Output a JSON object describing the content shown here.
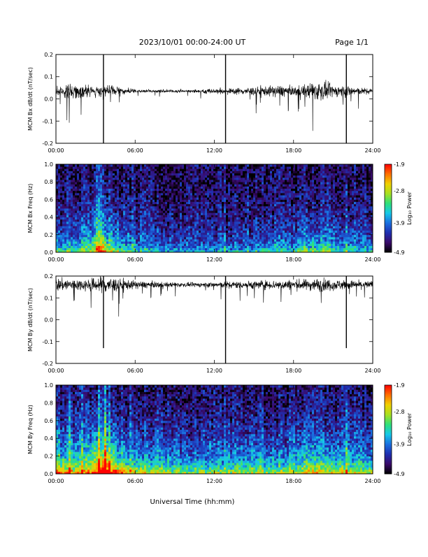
{
  "header": {
    "date_range": "2023/10/01  00:00-24:00 UT",
    "page": "Page 1/1"
  },
  "x_axis_title": "Universal Time (hh:mm)",
  "colors": {
    "trace": "#000000",
    "colormap": [
      "#000000",
      "#3a0a6a",
      "#1f2fb0",
      "#1a6fe0",
      "#16c8e8",
      "#2fe07a",
      "#a8e020",
      "#f0d000",
      "#ff7000",
      "#ff0000"
    ]
  },
  "chart_data": [
    {
      "type": "line",
      "ylabel": "MCM Bx dB/dt (nT/sec)",
      "ylim": [
        -0.2,
        0.2
      ],
      "yticks": [
        -0.2,
        -0.1,
        0.0,
        0.1,
        0.2
      ],
      "ytick_labels": [
        "-0.2",
        "-0.1",
        "0.0",
        "0.1",
        "0.2"
      ],
      "xlim": [
        0,
        24
      ],
      "xticks": [
        0,
        6,
        12,
        18,
        24
      ],
      "xtick_labels": [
        "00:00",
        "06:00",
        "12:00",
        "18:00",
        "24:00"
      ],
      "baseline": 0.035,
      "envelope": [
        [
          0,
          0.04
        ],
        [
          1,
          0.05
        ],
        [
          2,
          0.045
        ],
        [
          3,
          0.03
        ],
        [
          3.5,
          0.05
        ],
        [
          4.5,
          0.035
        ],
        [
          5.5,
          0.02
        ],
        [
          7,
          0.01
        ],
        [
          8,
          0.012
        ],
        [
          10,
          0.01
        ],
        [
          11,
          0.015
        ],
        [
          12,
          0.02
        ],
        [
          13,
          0.02
        ],
        [
          15,
          0.03
        ],
        [
          16,
          0.035
        ],
        [
          17,
          0.045
        ],
        [
          18,
          0.03
        ],
        [
          19,
          0.05
        ],
        [
          20,
          0.07
        ],
        [
          20.5,
          0.06
        ],
        [
          21,
          0.04
        ],
        [
          22,
          0.045
        ],
        [
          23,
          0.025
        ],
        [
          24,
          0.02
        ]
      ],
      "spikes": [
        {
          "t": 3.6,
          "low": -0.2,
          "high": 0.2
        },
        {
          "t": 12.85,
          "low": -0.2,
          "high": 0.2
        },
        {
          "t": 22.0,
          "low": -0.2,
          "high": 0.2
        }
      ]
    },
    {
      "type": "heatmap",
      "ylabel": "MCM Bx Freq (Hz)",
      "ylim": [
        0.0,
        1.0
      ],
      "yticks": [
        0.0,
        0.2,
        0.4,
        0.6,
        0.8,
        1.0
      ],
      "ytick_labels": [
        "0.0",
        "0.2",
        "0.4",
        "0.6",
        "0.8",
        "1.0"
      ],
      "xlim": [
        0,
        24
      ],
      "xticks": [
        0,
        6,
        12,
        18,
        24
      ],
      "xtick_labels": [
        "00:00",
        "06:00",
        "12:00",
        "18:00",
        "24:00"
      ],
      "colorbar": {
        "label": "Log₁₀ Power",
        "range": [
          -4.9,
          -1.9
        ],
        "ticks": [
          -1.9,
          -2.8,
          -3.9,
          -4.9
        ],
        "tick_labels": [
          "-1.9",
          "-2.8",
          "-3.9",
          "-4.9"
        ]
      },
      "activity": [
        [
          0,
          0.35
        ],
        [
          1,
          0.35
        ],
        [
          2,
          0.4
        ],
        [
          3,
          0.55
        ],
        [
          3.5,
          0.6
        ],
        [
          4,
          0.5
        ],
        [
          5,
          0.35
        ],
        [
          7,
          0.25
        ],
        [
          9,
          0.22
        ],
        [
          12,
          0.2
        ],
        [
          14,
          0.24
        ],
        [
          16,
          0.28
        ],
        [
          18,
          0.3
        ],
        [
          19,
          0.38
        ],
        [
          20,
          0.4
        ],
        [
          21,
          0.36
        ],
        [
          22,
          0.3
        ],
        [
          24,
          0.28
        ]
      ],
      "stripes": [
        [
          3.15,
          0.45
        ],
        [
          3.3,
          0.5
        ],
        [
          3.45,
          0.45
        ],
        [
          3.65,
          0.35
        ],
        [
          5.8,
          0.2
        ],
        [
          9.2,
          0.15
        ],
        [
          12.85,
          0.25
        ],
        [
          22.0,
          0.2
        ]
      ]
    },
    {
      "type": "line",
      "ylabel": "MCM By dB/dt (nT/sec)",
      "ylim": [
        -0.2,
        0.2
      ],
      "yticks": [
        -0.2,
        -0.1,
        0.0,
        0.1,
        0.2
      ],
      "ytick_labels": [
        "-0.2",
        "-0.1",
        "0.0",
        "0.1",
        "0.2"
      ],
      "xlim": [
        0,
        24
      ],
      "xticks": [
        0,
        6,
        12,
        18,
        24
      ],
      "xtick_labels": [
        "00:00",
        "06:00",
        "12:00",
        "18:00",
        "24:00"
      ],
      "baseline": 0.16,
      "envelope": [
        [
          0,
          0.05
        ],
        [
          1,
          0.045
        ],
        [
          2,
          0.04
        ],
        [
          3,
          0.05
        ],
        [
          3.5,
          0.07
        ],
        [
          4,
          0.06
        ],
        [
          5,
          0.04
        ],
        [
          6,
          0.03
        ],
        [
          8,
          0.02
        ],
        [
          10,
          0.015
        ],
        [
          12,
          0.02
        ],
        [
          13,
          0.025
        ],
        [
          15,
          0.03
        ],
        [
          17,
          0.035
        ],
        [
          19,
          0.04
        ],
        [
          20,
          0.05
        ],
        [
          21,
          0.04
        ],
        [
          22,
          0.035
        ],
        [
          23,
          0.03
        ],
        [
          24,
          0.03
        ]
      ],
      "spikes": [
        {
          "t": 3.6,
          "low": -0.13,
          "high": 0.2
        },
        {
          "t": 12.85,
          "low": -0.2,
          "high": 0.2
        },
        {
          "t": 22.0,
          "low": -0.13,
          "high": 0.2
        }
      ]
    },
    {
      "type": "heatmap",
      "ylabel": "MCM By Freq (Hz)",
      "ylim": [
        0.0,
        1.0
      ],
      "yticks": [
        0.0,
        0.2,
        0.4,
        0.6,
        0.8,
        1.0
      ],
      "ytick_labels": [
        "0.0",
        "0.2",
        "0.4",
        "0.6",
        "0.8",
        "1.0"
      ],
      "xlim": [
        0,
        24
      ],
      "xticks": [
        0,
        6,
        12,
        18,
        24
      ],
      "xtick_labels": [
        "00:00",
        "06:00",
        "12:00",
        "18:00",
        "24:00"
      ],
      "colorbar": {
        "label": "Log₁₀ Power",
        "range": [
          -4.9,
          -1.9
        ],
        "ticks": [
          -1.9,
          -2.8,
          -3.9,
          -4.9
        ],
        "tick_labels": [
          "-1.9",
          "-2.8",
          "-3.9",
          "-4.9"
        ]
      },
      "activity": [
        [
          0,
          0.6
        ],
        [
          1,
          0.55
        ],
        [
          2,
          0.55
        ],
        [
          3,
          0.75
        ],
        [
          3.5,
          0.85
        ],
        [
          4,
          0.8
        ],
        [
          4.5,
          0.7
        ],
        [
          5,
          0.6
        ],
        [
          6,
          0.5
        ],
        [
          8,
          0.45
        ],
        [
          10,
          0.42
        ],
        [
          12,
          0.4
        ],
        [
          14,
          0.42
        ],
        [
          16,
          0.45
        ],
        [
          18,
          0.45
        ],
        [
          19,
          0.52
        ],
        [
          20,
          0.55
        ],
        [
          21,
          0.5
        ],
        [
          22,
          0.5
        ],
        [
          24,
          0.45
        ]
      ],
      "stripes": [
        [
          0.3,
          0.4
        ],
        [
          1.0,
          0.35
        ],
        [
          2.0,
          0.3
        ],
        [
          3.3,
          0.6
        ],
        [
          3.5,
          0.65
        ],
        [
          3.7,
          0.7
        ],
        [
          4.0,
          0.6
        ],
        [
          4.3,
          0.55
        ],
        [
          4.6,
          0.5
        ],
        [
          5.6,
          0.3
        ],
        [
          6.5,
          0.3
        ],
        [
          9.2,
          0.3
        ],
        [
          12.85,
          0.3
        ],
        [
          22.0,
          0.3
        ]
      ]
    }
  ]
}
